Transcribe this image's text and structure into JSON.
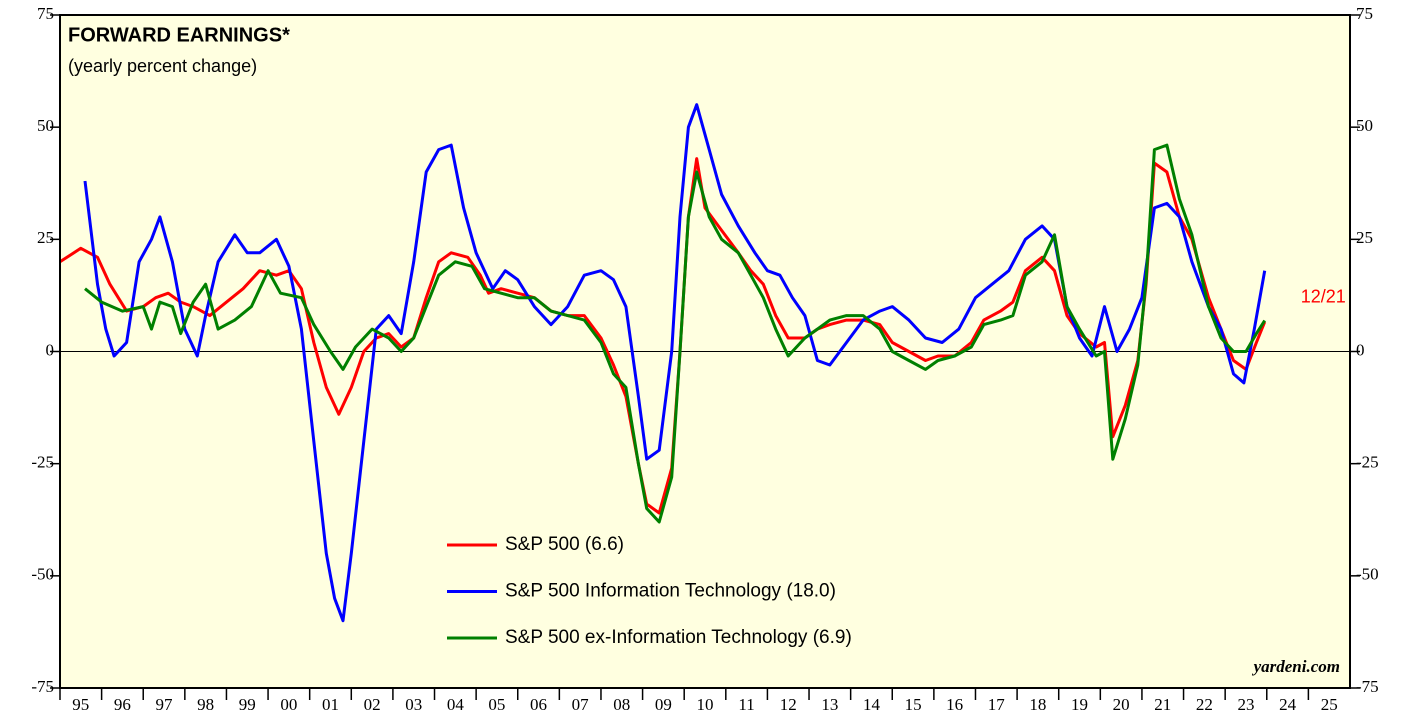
{
  "chart_data": {
    "type": "line",
    "title": "FORWARD EARNINGS*",
    "subtitle": "(yearly percent change)",
    "annotation": "12/21",
    "source": "yardeni.com",
    "xlim": [
      1995,
      2026
    ],
    "xticks": [
      {
        "value": 1995,
        "label": "95"
      },
      {
        "value": 1996,
        "label": "96"
      },
      {
        "value": 1997,
        "label": "97"
      },
      {
        "value": 1998,
        "label": "98"
      },
      {
        "value": 1999,
        "label": "99"
      },
      {
        "value": 2000,
        "label": "00"
      },
      {
        "value": 2001,
        "label": "01"
      },
      {
        "value": 2002,
        "label": "02"
      },
      {
        "value": 2003,
        "label": "03"
      },
      {
        "value": 2004,
        "label": "04"
      },
      {
        "value": 2005,
        "label": "05"
      },
      {
        "value": 2006,
        "label": "06"
      },
      {
        "value": 2007,
        "label": "07"
      },
      {
        "value": 2008,
        "label": "08"
      },
      {
        "value": 2009,
        "label": "09"
      },
      {
        "value": 2010,
        "label": "10"
      },
      {
        "value": 2011,
        "label": "11"
      },
      {
        "value": 2012,
        "label": "12"
      },
      {
        "value": 2013,
        "label": "13"
      },
      {
        "value": 2014,
        "label": "14"
      },
      {
        "value": 2015,
        "label": "15"
      },
      {
        "value": 2016,
        "label": "16"
      },
      {
        "value": 2017,
        "label": "17"
      },
      {
        "value": 2018,
        "label": "18"
      },
      {
        "value": 2019,
        "label": "19"
      },
      {
        "value": 2020,
        "label": "20"
      },
      {
        "value": 2021,
        "label": "21"
      },
      {
        "value": 2022,
        "label": "22"
      },
      {
        "value": 2023,
        "label": "23"
      },
      {
        "value": 2024,
        "label": "24"
      },
      {
        "value": 2025,
        "label": "25"
      }
    ],
    "ylim": [
      -75,
      75
    ],
    "yticks": [
      -75,
      -50,
      -25,
      0,
      25,
      50,
      75
    ],
    "series": [
      {
        "name": "S&P 500 (6.6)",
        "color": "#ff0000",
        "x": [
          1995.0,
          1995.5,
          1995.9,
          1996.2,
          1996.6,
          1997.0,
          1997.3,
          1997.6,
          1997.9,
          1998.2,
          1998.6,
          1999.0,
          1999.4,
          1999.8,
          2000.2,
          2000.5,
          2000.8,
          2001.1,
          2001.4,
          2001.7,
          2002.0,
          2002.3,
          2002.6,
          2002.9,
          2003.2,
          2003.5,
          2003.8,
          2004.1,
          2004.4,
          2004.8,
          2005.1,
          2005.3,
          2005.6,
          2006.0,
          2006.4,
          2006.8,
          2007.2,
          2007.6,
          2008.0,
          2008.3,
          2008.6,
          2008.9,
          2009.1,
          2009.4,
          2009.7,
          2009.9,
          2010.1,
          2010.3,
          2010.5,
          2010.9,
          2011.3,
          2011.6,
          2011.9,
          2012.2,
          2012.5,
          2012.9,
          2013.2,
          2013.5,
          2013.9,
          2014.3,
          2014.7,
          2015.0,
          2015.4,
          2015.8,
          2016.1,
          2016.5,
          2016.9,
          2017.2,
          2017.6,
          2017.9,
          2018.2,
          2018.6,
          2018.9,
          2019.2,
          2019.5,
          2019.9,
          2020.1,
          2020.3,
          2020.6,
          2020.9,
          2021.1,
          2021.3,
          2021.6,
          2021.9,
          2022.2,
          2022.6,
          2022.9,
          2023.2,
          2023.5,
          2023.75,
          2023.95
        ],
        "values": [
          20,
          23,
          21,
          15,
          9,
          10,
          12,
          13,
          11,
          10,
          8,
          11,
          14,
          18,
          17,
          18,
          14,
          2,
          -8,
          -14,
          -8,
          0,
          3,
          4,
          1,
          3,
          12,
          20,
          22,
          21,
          17,
          13,
          14,
          13,
          12,
          9,
          8,
          8,
          3,
          -3,
          -10,
          -25,
          -34,
          -36,
          -26,
          0,
          30,
          43,
          32,
          27,
          22,
          18,
          15,
          8,
          3,
          3,
          5,
          6,
          7,
          7,
          6,
          2,
          0,
          -2,
          -1,
          -1,
          2,
          7,
          9,
          11,
          18,
          21,
          18,
          8,
          4,
          1,
          2,
          -19,
          -12,
          -2,
          15,
          42,
          40,
          30,
          25,
          12,
          5,
          -2,
          -4,
          2,
          6.6
        ]
      },
      {
        "name": "S&P 500 Information Technology (18.0)",
        "color": "#0000ff",
        "x": [
          1995.6,
          1995.9,
          1996.1,
          1996.3,
          1996.6,
          1996.9,
          1997.2,
          1997.4,
          1997.7,
          1998.0,
          1998.3,
          1998.5,
          1998.8,
          1999.2,
          1999.5,
          1999.8,
          2000.2,
          2000.5,
          2000.8,
          2001.1,
          2001.4,
          2001.6,
          2001.8,
          2002.0,
          2002.3,
          2002.6,
          2002.9,
          2003.2,
          2003.5,
          2003.8,
          2004.1,
          2004.4,
          2004.7,
          2005.0,
          2005.4,
          2005.7,
          2006.0,
          2006.4,
          2006.8,
          2007.2,
          2007.6,
          2008.0,
          2008.3,
          2008.6,
          2008.9,
          2009.1,
          2009.4,
          2009.7,
          2009.9,
          2010.1,
          2010.3,
          2010.6,
          2010.9,
          2011.3,
          2011.7,
          2012.0,
          2012.3,
          2012.6,
          2012.9,
          2013.2,
          2013.5,
          2013.9,
          2014.3,
          2014.7,
          2015.0,
          2015.4,
          2015.8,
          2016.2,
          2016.6,
          2017.0,
          2017.4,
          2017.8,
          2018.2,
          2018.6,
          2018.9,
          2019.2,
          2019.5,
          2019.8,
          2020.1,
          2020.4,
          2020.7,
          2021.0,
          2021.3,
          2021.6,
          2021.9,
          2022.2,
          2022.6,
          2022.9,
          2023.2,
          2023.45,
          2023.7,
          2023.95
        ],
        "values": [
          38,
          15,
          5,
          -1,
          2,
          20,
          25,
          30,
          20,
          5,
          -1,
          8,
          20,
          26,
          22,
          22,
          25,
          19,
          5,
          -20,
          -45,
          -55,
          -60,
          -45,
          -20,
          5,
          8,
          4,
          20,
          40,
          45,
          46,
          32,
          22,
          14,
          18,
          16,
          10,
          6,
          10,
          17,
          18,
          16,
          10,
          -10,
          -24,
          -22,
          0,
          30,
          50,
          55,
          45,
          35,
          28,
          22,
          18,
          17,
          12,
          8,
          -2,
          -3,
          2,
          7,
          9,
          10,
          7,
          3,
          2,
          5,
          12,
          15,
          18,
          25,
          28,
          25,
          10,
          3,
          -1,
          10,
          0,
          5,
          12,
          32,
          33,
          30,
          20,
          10,
          5,
          -5,
          -7,
          5,
          18
        ]
      },
      {
        "name": "S&P 500 ex-Information Technology (6.9)",
        "color": "#008000",
        "x": [
          1995.6,
          1996.0,
          1996.5,
          1997.0,
          1997.2,
          1997.4,
          1997.7,
          1997.9,
          1998.2,
          1998.5,
          1998.8,
          1999.2,
          1999.6,
          2000.0,
          2000.3,
          2000.8,
          2001.1,
          2001.5,
          2001.8,
          2002.1,
          2002.5,
          2002.9,
          2003.2,
          2003.5,
          2003.8,
          2004.1,
          2004.5,
          2004.9,
          2005.2,
          2005.6,
          2006.0,
          2006.4,
          2006.8,
          2007.2,
          2007.6,
          2008.0,
          2008.3,
          2008.6,
          2008.9,
          2009.1,
          2009.4,
          2009.7,
          2009.9,
          2010.1,
          2010.3,
          2010.6,
          2010.9,
          2011.3,
          2011.6,
          2011.9,
          2012.2,
          2012.5,
          2012.9,
          2013.2,
          2013.5,
          2013.9,
          2014.3,
          2014.7,
          2015.0,
          2015.4,
          2015.8,
          2016.1,
          2016.5,
          2016.9,
          2017.2,
          2017.6,
          2017.9,
          2018.2,
          2018.6,
          2018.9,
          2019.2,
          2019.5,
          2019.9,
          2020.1,
          2020.3,
          2020.6,
          2020.9,
          2021.1,
          2021.3,
          2021.6,
          2021.9,
          2022.2,
          2022.6,
          2022.9,
          2023.2,
          2023.5,
          2023.75,
          2023.95
        ],
        "values": [
          14,
          11,
          9,
          10,
          5,
          11,
          10,
          4,
          11,
          15,
          5,
          7,
          10,
          18,
          13,
          12,
          6,
          0,
          -4,
          1,
          5,
          3,
          0,
          3,
          10,
          17,
          20,
          19,
          14,
          13,
          12,
          12,
          9,
          8,
          7,
          2,
          -5,
          -8,
          -25,
          -35,
          -38,
          -28,
          0,
          30,
          40,
          30,
          25,
          22,
          17,
          12,
          5,
          -1,
          3,
          5,
          7,
          8,
          8,
          5,
          0,
          -2,
          -4,
          -2,
          -1,
          1,
          6,
          7,
          8,
          17,
          20,
          26,
          10,
          5,
          -1,
          0,
          -24,
          -15,
          -3,
          16,
          45,
          46,
          34,
          26,
          10,
          3,
          0,
          0,
          4,
          6.9
        ]
      }
    ]
  }
}
